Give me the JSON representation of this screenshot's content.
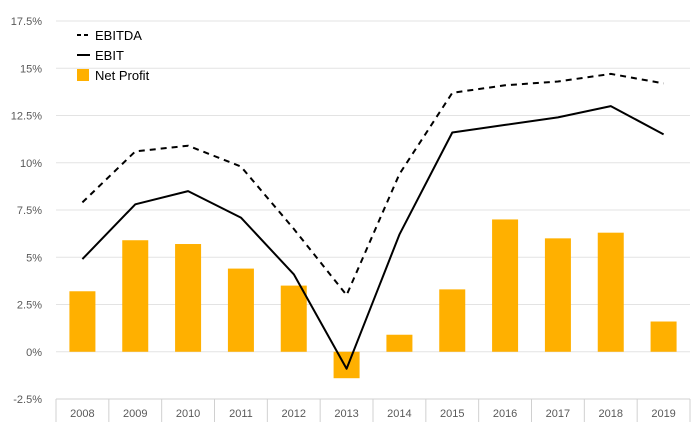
{
  "chart_data": {
    "type": "bar",
    "title": "",
    "xlabel": "",
    "ylabel": "",
    "categories": [
      "2008",
      "2009",
      "2010",
      "2011",
      "2012",
      "2013",
      "2014",
      "2015",
      "2016",
      "2017",
      "2018",
      "2019"
    ],
    "ylim": [
      -2.5,
      17.5
    ],
    "y_ticks": [
      {
        "value": 17.5,
        "label": "17.5%"
      },
      {
        "value": 15,
        "label": "15%"
      },
      {
        "value": 12.5,
        "label": "12.5%"
      },
      {
        "value": 10,
        "label": "10%"
      },
      {
        "value": 7.5,
        "label": "7.5%"
      },
      {
        "value": 5,
        "label": "5%"
      },
      {
        "value": 2.5,
        "label": "2.5%"
      },
      {
        "value": 0,
        "label": "0%"
      },
      {
        "value": -2.5,
        "label": "-2.5%"
      }
    ],
    "grid": true,
    "legend_position": "top-left",
    "series": [
      {
        "name": "EBITDA",
        "type": "line",
        "style": "dashed",
        "color": "#000000",
        "values": [
          7.9,
          10.6,
          10.9,
          9.8,
          6.5,
          3.0,
          9.4,
          13.7,
          14.1,
          14.3,
          14.7,
          14.2
        ]
      },
      {
        "name": "EBIT",
        "type": "line",
        "style": "solid",
        "color": "#000000",
        "values": [
          4.9,
          7.8,
          8.5,
          7.1,
          4.1,
          -0.9,
          6.2,
          11.6,
          12.0,
          12.4,
          13.0,
          11.5
        ]
      },
      {
        "name": "Net Profit",
        "type": "bar",
        "color": "#FFB000",
        "values": [
          3.2,
          5.9,
          5.7,
          4.4,
          3.5,
          -1.4,
          0.9,
          3.3,
          7.0,
          6.0,
          6.3,
          1.6
        ]
      }
    ]
  }
}
